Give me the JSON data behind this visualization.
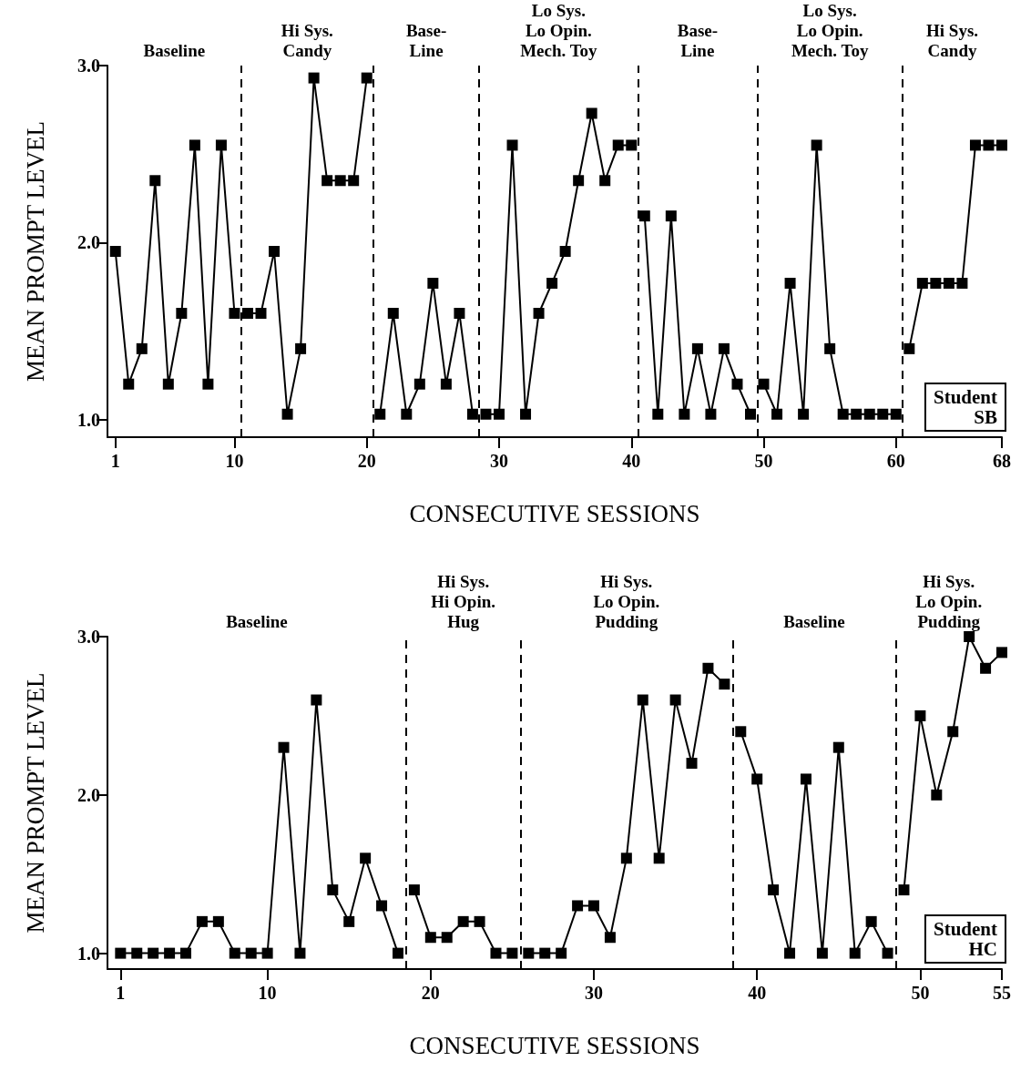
{
  "chart_data": [
    {
      "type": "line",
      "xlabel": "CONSECUTIVE SESSIONS",
      "ylabel": "MEAN PROMPT LEVEL",
      "xlim": [
        0.4,
        68
      ],
      "ylim": [
        0.9,
        3.0
      ],
      "xticks": [
        1,
        10,
        20,
        30,
        40,
        50,
        60,
        68
      ],
      "yticks": [
        {
          "value": 1,
          "label": "1.0"
        },
        {
          "value": 2,
          "label": "2.0"
        },
        {
          "value": 3,
          "label": "3.0"
        }
      ],
      "marker": "square",
      "line_style": "solid",
      "grid": false,
      "series": [
        {
          "color": "#000000",
          "x": [
            1,
            2,
            3,
            4,
            5,
            6,
            7,
            8,
            9,
            10
          ],
          "values": [
            1.95,
            1.2,
            1.4,
            2.35,
            1.2,
            1.6,
            2.55,
            1.2,
            2.55,
            1.6
          ]
        },
        {
          "color": "#000000",
          "x": [
            11,
            12,
            13,
            14,
            15,
            16,
            17,
            18,
            19,
            20
          ],
          "values": [
            1.6,
            1.6,
            1.95,
            1.03,
            1.4,
            2.93,
            2.35,
            2.35,
            2.35,
            2.93
          ]
        },
        {
          "color": "#000000",
          "x": [
            21,
            22,
            23,
            24,
            25,
            26,
            27,
            28
          ],
          "values": [
            1.03,
            1.6,
            1.03,
            1.2,
            1.77,
            1.2,
            1.6,
            1.03
          ]
        },
        {
          "color": "#000000",
          "x": [
            29,
            30,
            31,
            32,
            33,
            34,
            35,
            36,
            37,
            38,
            39,
            40
          ],
          "values": [
            1.03,
            1.03,
            2.55,
            1.03,
            1.6,
            1.77,
            1.95,
            2.35,
            2.73,
            2.35,
            2.55,
            2.55
          ]
        },
        {
          "color": "#000000",
          "x": [
            41,
            42,
            43,
            44,
            45,
            46,
            47,
            48,
            49
          ],
          "values": [
            2.15,
            1.03,
            2.15,
            1.03,
            1.4,
            1.03,
            1.4,
            1.2,
            1.03
          ]
        },
        {
          "color": "#000000",
          "x": [
            50,
            51,
            52,
            53,
            54,
            55,
            56,
            57,
            58,
            59,
            60
          ],
          "values": [
            1.2,
            1.03,
            1.77,
            1.03,
            2.55,
            1.4,
            1.03,
            1.03,
            1.03,
            1.03,
            1.03
          ]
        },
        {
          "color": "#000000",
          "x": [
            61,
            62,
            63,
            64,
            65,
            66,
            67,
            68
          ],
          "values": [
            1.4,
            1.77,
            1.77,
            1.77,
            1.77,
            2.55,
            2.55,
            2.55
          ]
        }
      ],
      "ref_lines": [
        {
          "axis": "x",
          "value": 10.5,
          "color": "#000000",
          "line_style": "dashed"
        },
        {
          "axis": "x",
          "value": 20.5,
          "color": "#000000",
          "line_style": "dashed"
        },
        {
          "axis": "x",
          "value": 28.5,
          "color": "#000000",
          "line_style": "dashed"
        },
        {
          "axis": "x",
          "value": 40.5,
          "color": "#000000",
          "line_style": "dashed"
        },
        {
          "axis": "x",
          "value": 49.5,
          "color": "#000000",
          "line_style": "dashed"
        },
        {
          "axis": "x",
          "value": 60.5,
          "color": "#000000",
          "line_style": "dashed"
        }
      ],
      "annotations": [
        "Baseline",
        "Hi Sys.\nCandy",
        "Base-\nLine",
        "Lo Sys.\nLo Opin.\nMech. Toy",
        "Base-\nLine",
        "Lo Sys.\nLo Opin.\nMech. Toy",
        "Hi Sys.\nCandy",
        "Student\nSB"
      ]
    },
    {
      "type": "line",
      "xlabel": "CONSECUTIVE SESSIONS",
      "ylabel": "MEAN PROMPT LEVEL",
      "xlim": [
        0.2,
        55
      ],
      "ylim": [
        0.9,
        3.0
      ],
      "xticks": [
        1,
        10,
        20,
        30,
        40,
        50,
        55
      ],
      "yticks": [
        {
          "value": 1,
          "label": "1.0"
        },
        {
          "value": 2,
          "label": "2.0"
        },
        {
          "value": 3,
          "label": "3.0"
        }
      ],
      "marker": "square",
      "line_style": "solid",
      "grid": false,
      "series": [
        {
          "color": "#000000",
          "x": [
            1,
            2,
            3,
            4,
            5,
            6,
            7,
            8,
            9,
            10,
            11,
            12,
            13,
            14,
            15,
            16,
            17,
            18
          ],
          "values": [
            1,
            1,
            1,
            1,
            1,
            1.2,
            1.2,
            1,
            1,
            1,
            2.3,
            1,
            2.6,
            1.4,
            1.2,
            1.6,
            1.3,
            1
          ]
        },
        {
          "color": "#000000",
          "x": [
            19,
            20,
            21,
            22,
            23,
            24,
            25
          ],
          "values": [
            1.4,
            1.1,
            1.1,
            1.2,
            1.2,
            1,
            1
          ]
        },
        {
          "color": "#000000",
          "x": [
            26,
            27,
            28,
            29,
            30,
            31,
            32,
            33,
            34,
            35,
            36,
            37,
            38
          ],
          "values": [
            1,
            1,
            1,
            1.3,
            1.3,
            1.1,
            1.6,
            2.6,
            1.6,
            2.6,
            2.2,
            2.8,
            2.7
          ]
        },
        {
          "color": "#000000",
          "x": [
            39,
            40,
            41,
            42,
            43,
            44,
            45,
            46,
            47,
            48
          ],
          "values": [
            2.4,
            2.1,
            1.4,
            1,
            2.1,
            1,
            2.3,
            1,
            1.2,
            1
          ]
        },
        {
          "color": "#000000",
          "x": [
            49,
            50,
            51,
            52,
            53,
            54,
            55
          ],
          "values": [
            1.4,
            2.5,
            2,
            2.4,
            3,
            2.8,
            2.9
          ]
        }
      ],
      "ref_lines": [
        {
          "axis": "x",
          "value": 18.5,
          "color": "#000000",
          "line_style": "dashed"
        },
        {
          "axis": "x",
          "value": 25.5,
          "color": "#000000",
          "line_style": "dashed"
        },
        {
          "axis": "x",
          "value": 38.5,
          "color": "#000000",
          "line_style": "dashed"
        },
        {
          "axis": "x",
          "value": 48.5,
          "color": "#000000",
          "line_style": "dashed"
        }
      ],
      "annotations": [
        "Baseline",
        "Hi Sys.\nHi Opin.\nHug",
        "Hi Sys.\nLo Opin.\nPudding",
        "Baseline",
        "Hi Sys.\nLo Opin.\nPudding",
        "Student\nHC"
      ]
    }
  ]
}
